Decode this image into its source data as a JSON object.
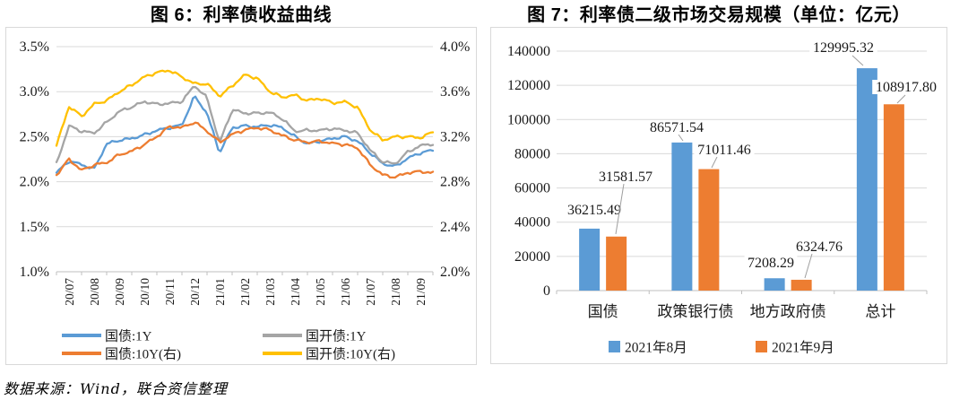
{
  "page": {
    "source_note": "数据来源：Wind，联合资信整理"
  },
  "colors": {
    "blue": "#5B9BD5",
    "orange": "#ED7D31",
    "gray": "#A5A5A5",
    "yellow": "#FFC000",
    "gridline": "#D9D9D9",
    "axis": "#BFBFBF",
    "leader": "#9E9E9E",
    "text": "#1A1A1A"
  },
  "chart_data": [
    {
      "id": "fig6",
      "type": "line",
      "title": "图 6：利率债收益曲线",
      "x_tick_labels": [
        "20/07",
        "20/08",
        "20/09",
        "20/10",
        "20/11",
        "20/12",
        "21/01",
        "21/02",
        "21/03",
        "21/04",
        "21/05",
        "21/06",
        "21/07",
        "21/08",
        "21/09"
      ],
      "sampling": "semi-monthly samples, 2020-07-01 to 2021-10-01",
      "grid": true,
      "legend_position": "bottom",
      "left_axis": {
        "min": 1.0,
        "max": 3.5,
        "tick_labels": [
          "3.5%",
          "3.0%",
          "2.5%",
          "2.0%",
          "1.5%",
          "1.0%"
        ]
      },
      "right_axis": {
        "min": 2.0,
        "max": 4.0,
        "tick_labels": [
          "4.0%",
          "3.6%",
          "3.2%",
          "2.8%",
          "2.4%",
          "2.0%"
        ]
      },
      "series": [
        {
          "name": "国债:1Y",
          "axis": "left",
          "color_key": "blue",
          "values": [
            2.1,
            2.23,
            2.19,
            2.14,
            2.42,
            2.46,
            2.48,
            2.52,
            2.57,
            2.6,
            2.63,
            2.95,
            2.76,
            2.32,
            2.6,
            2.62,
            2.61,
            2.63,
            2.6,
            2.5,
            2.42,
            2.45,
            2.48,
            2.5,
            2.45,
            2.32,
            2.2,
            2.17,
            2.26,
            2.32,
            2.35
          ]
        },
        {
          "name": "国开债:1Y",
          "axis": "left",
          "color_key": "gray",
          "values": [
            2.2,
            2.62,
            2.56,
            2.54,
            2.66,
            2.78,
            2.83,
            2.89,
            2.86,
            2.87,
            2.89,
            3.07,
            2.93,
            2.43,
            2.8,
            2.76,
            2.76,
            2.77,
            2.7,
            2.56,
            2.57,
            2.57,
            2.59,
            2.57,
            2.54,
            2.35,
            2.22,
            2.2,
            2.33,
            2.4,
            2.42
          ]
        },
        {
          "name": "国债:10Y(右)",
          "axis": "right",
          "color_key": "orange",
          "values": [
            2.86,
            3.0,
            2.9,
            2.95,
            2.97,
            3.04,
            3.07,
            3.13,
            3.2,
            3.29,
            3.28,
            3.33,
            3.25,
            3.15,
            3.22,
            3.26,
            3.28,
            3.26,
            3.21,
            3.17,
            3.15,
            3.16,
            3.14,
            3.13,
            3.1,
            2.95,
            2.86,
            2.84,
            2.88,
            2.89,
            2.88
          ]
        },
        {
          "name": "国开债:10Y(右)",
          "axis": "right",
          "color_key": "yellow",
          "values": [
            3.12,
            3.47,
            3.38,
            3.49,
            3.52,
            3.6,
            3.66,
            3.73,
            3.77,
            3.79,
            3.73,
            3.67,
            3.67,
            3.56,
            3.65,
            3.75,
            3.72,
            3.6,
            3.55,
            3.57,
            3.52,
            3.54,
            3.5,
            3.51,
            3.46,
            3.26,
            3.17,
            3.2,
            3.2,
            3.19,
            3.24
          ]
        }
      ]
    },
    {
      "id": "fig7",
      "type": "bar",
      "title": "图 7：利率债二级市场交易规模（单位：亿元）",
      "categories": [
        "国债",
        "政策银行债",
        "地方政府债",
        "总计"
      ],
      "y_axis": {
        "min": 0,
        "max": 140000,
        "tick_labels": [
          "0",
          "20000",
          "40000",
          "60000",
          "80000",
          "100000",
          "120000",
          "140000"
        ]
      },
      "grid": true,
      "legend_position": "bottom",
      "series": [
        {
          "name": "2021年8月",
          "color_key": "blue",
          "values": [
            36215.49,
            86571.54,
            7208.29,
            129995.32
          ],
          "labels": [
            "36215.49",
            "86571.54",
            "7208.29",
            "129995.32"
          ]
        },
        {
          "name": "2021年9月",
          "color_key": "orange",
          "values": [
            31581.57,
            71011.46,
            6324.76,
            108917.8
          ],
          "labels": [
            "31581.57",
            "71011.46",
            "6324.76",
            "108917.80"
          ]
        }
      ]
    }
  ]
}
